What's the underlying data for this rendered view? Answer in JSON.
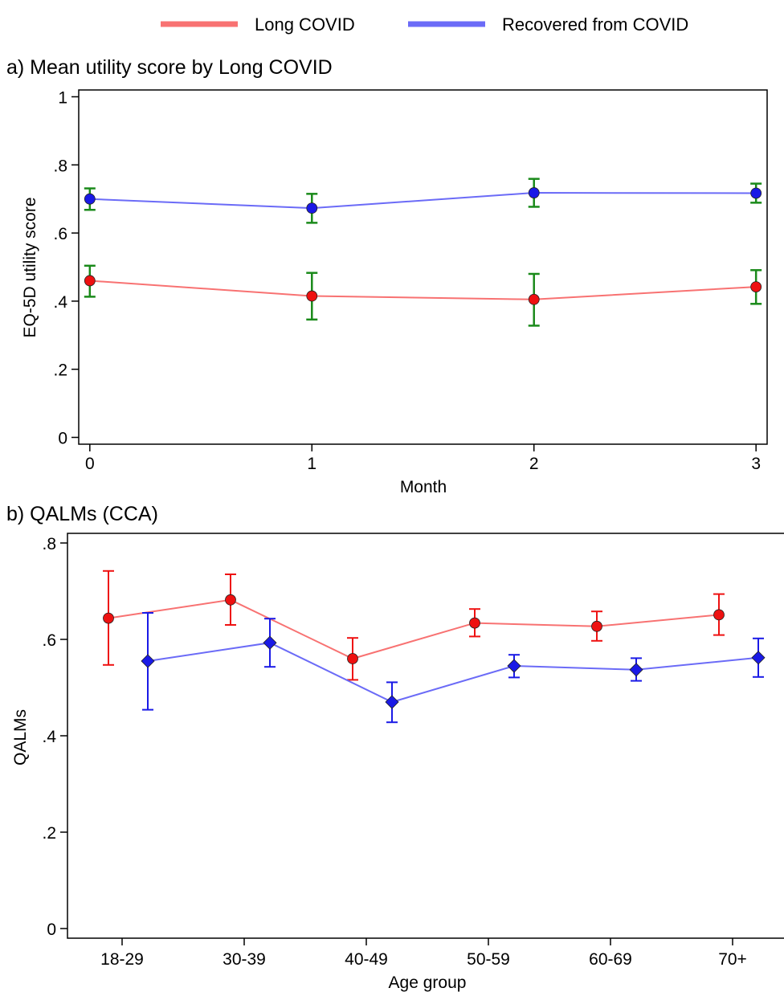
{
  "legend": {
    "position": "top-center",
    "items": [
      {
        "label": "Long COVID",
        "color": "#f87272"
      },
      {
        "label": "Recovered from COVID",
        "color": "#6b6bf7"
      }
    ]
  },
  "colors": {
    "long_marker": "#ee1111",
    "long_line": "#f87272",
    "recovered_marker": "#1a1ae6",
    "recovered_line": "#6b6bf7",
    "errorbar_a": "#1a8a1a"
  },
  "chart_data": [
    {
      "type": "line",
      "title": "a) Mean utility score by Long COVID",
      "xlabel": "Month",
      "ylabel": "EQ-5D utility score",
      "x": [
        0,
        1,
        2,
        3
      ],
      "xticks": [
        "0",
        "1",
        "2",
        "3"
      ],
      "xlim": [
        -0.05,
        3.05
      ],
      "ylim": [
        -0.02,
        1.02
      ],
      "yticks": [
        0,
        0.2,
        0.4,
        0.6,
        0.8,
        1
      ],
      "ytick_labels": [
        "0",
        ".2",
        ".4",
        ".6",
        ".8",
        "1"
      ],
      "grid": false,
      "series": [
        {
          "name": "Long COVID",
          "marker": "circle",
          "values": [
            0.46,
            0.415,
            0.405,
            0.442
          ],
          "lower": [
            0.413,
            0.346,
            0.328,
            0.392
          ],
          "upper": [
            0.504,
            0.483,
            0.48,
            0.491
          ]
        },
        {
          "name": "Recovered from COVID",
          "marker": "circle",
          "values": [
            0.7,
            0.673,
            0.718,
            0.717
          ],
          "lower": [
            0.668,
            0.63,
            0.677,
            0.689
          ],
          "upper": [
            0.731,
            0.715,
            0.759,
            0.745
          ]
        }
      ]
    },
    {
      "type": "line",
      "title": "b) QALMs (CCA)",
      "xlabel": "Age group",
      "ylabel": "QALMs",
      "categories": [
        "18-29",
        "30-39",
        "40-49",
        "50-59",
        "60-69",
        "70+"
      ],
      "ylim": [
        -0.02,
        0.82
      ],
      "yticks": [
        0,
        0.2,
        0.4,
        0.6,
        0.8
      ],
      "ytick_labels": [
        "0",
        ".2",
        ".4",
        ".6",
        ".8"
      ],
      "grid": false,
      "series": [
        {
          "name": "Long COVID",
          "marker": "circle",
          "values": [
            0.644,
            0.682,
            0.56,
            0.634,
            0.627,
            0.651
          ],
          "lower": [
            0.547,
            0.63,
            0.516,
            0.606,
            0.597,
            0.609
          ],
          "upper": [
            0.742,
            0.735,
            0.603,
            0.663,
            0.658,
            0.694
          ]
        },
        {
          "name": "Recovered from COVID",
          "marker": "diamond",
          "values": [
            0.555,
            0.593,
            0.47,
            0.545,
            0.537,
            0.562
          ],
          "lower": [
            0.454,
            0.543,
            0.428,
            0.521,
            0.514,
            0.522
          ],
          "upper": [
            0.655,
            0.643,
            0.511,
            0.568,
            0.561,
            0.602
          ]
        }
      ]
    }
  ]
}
